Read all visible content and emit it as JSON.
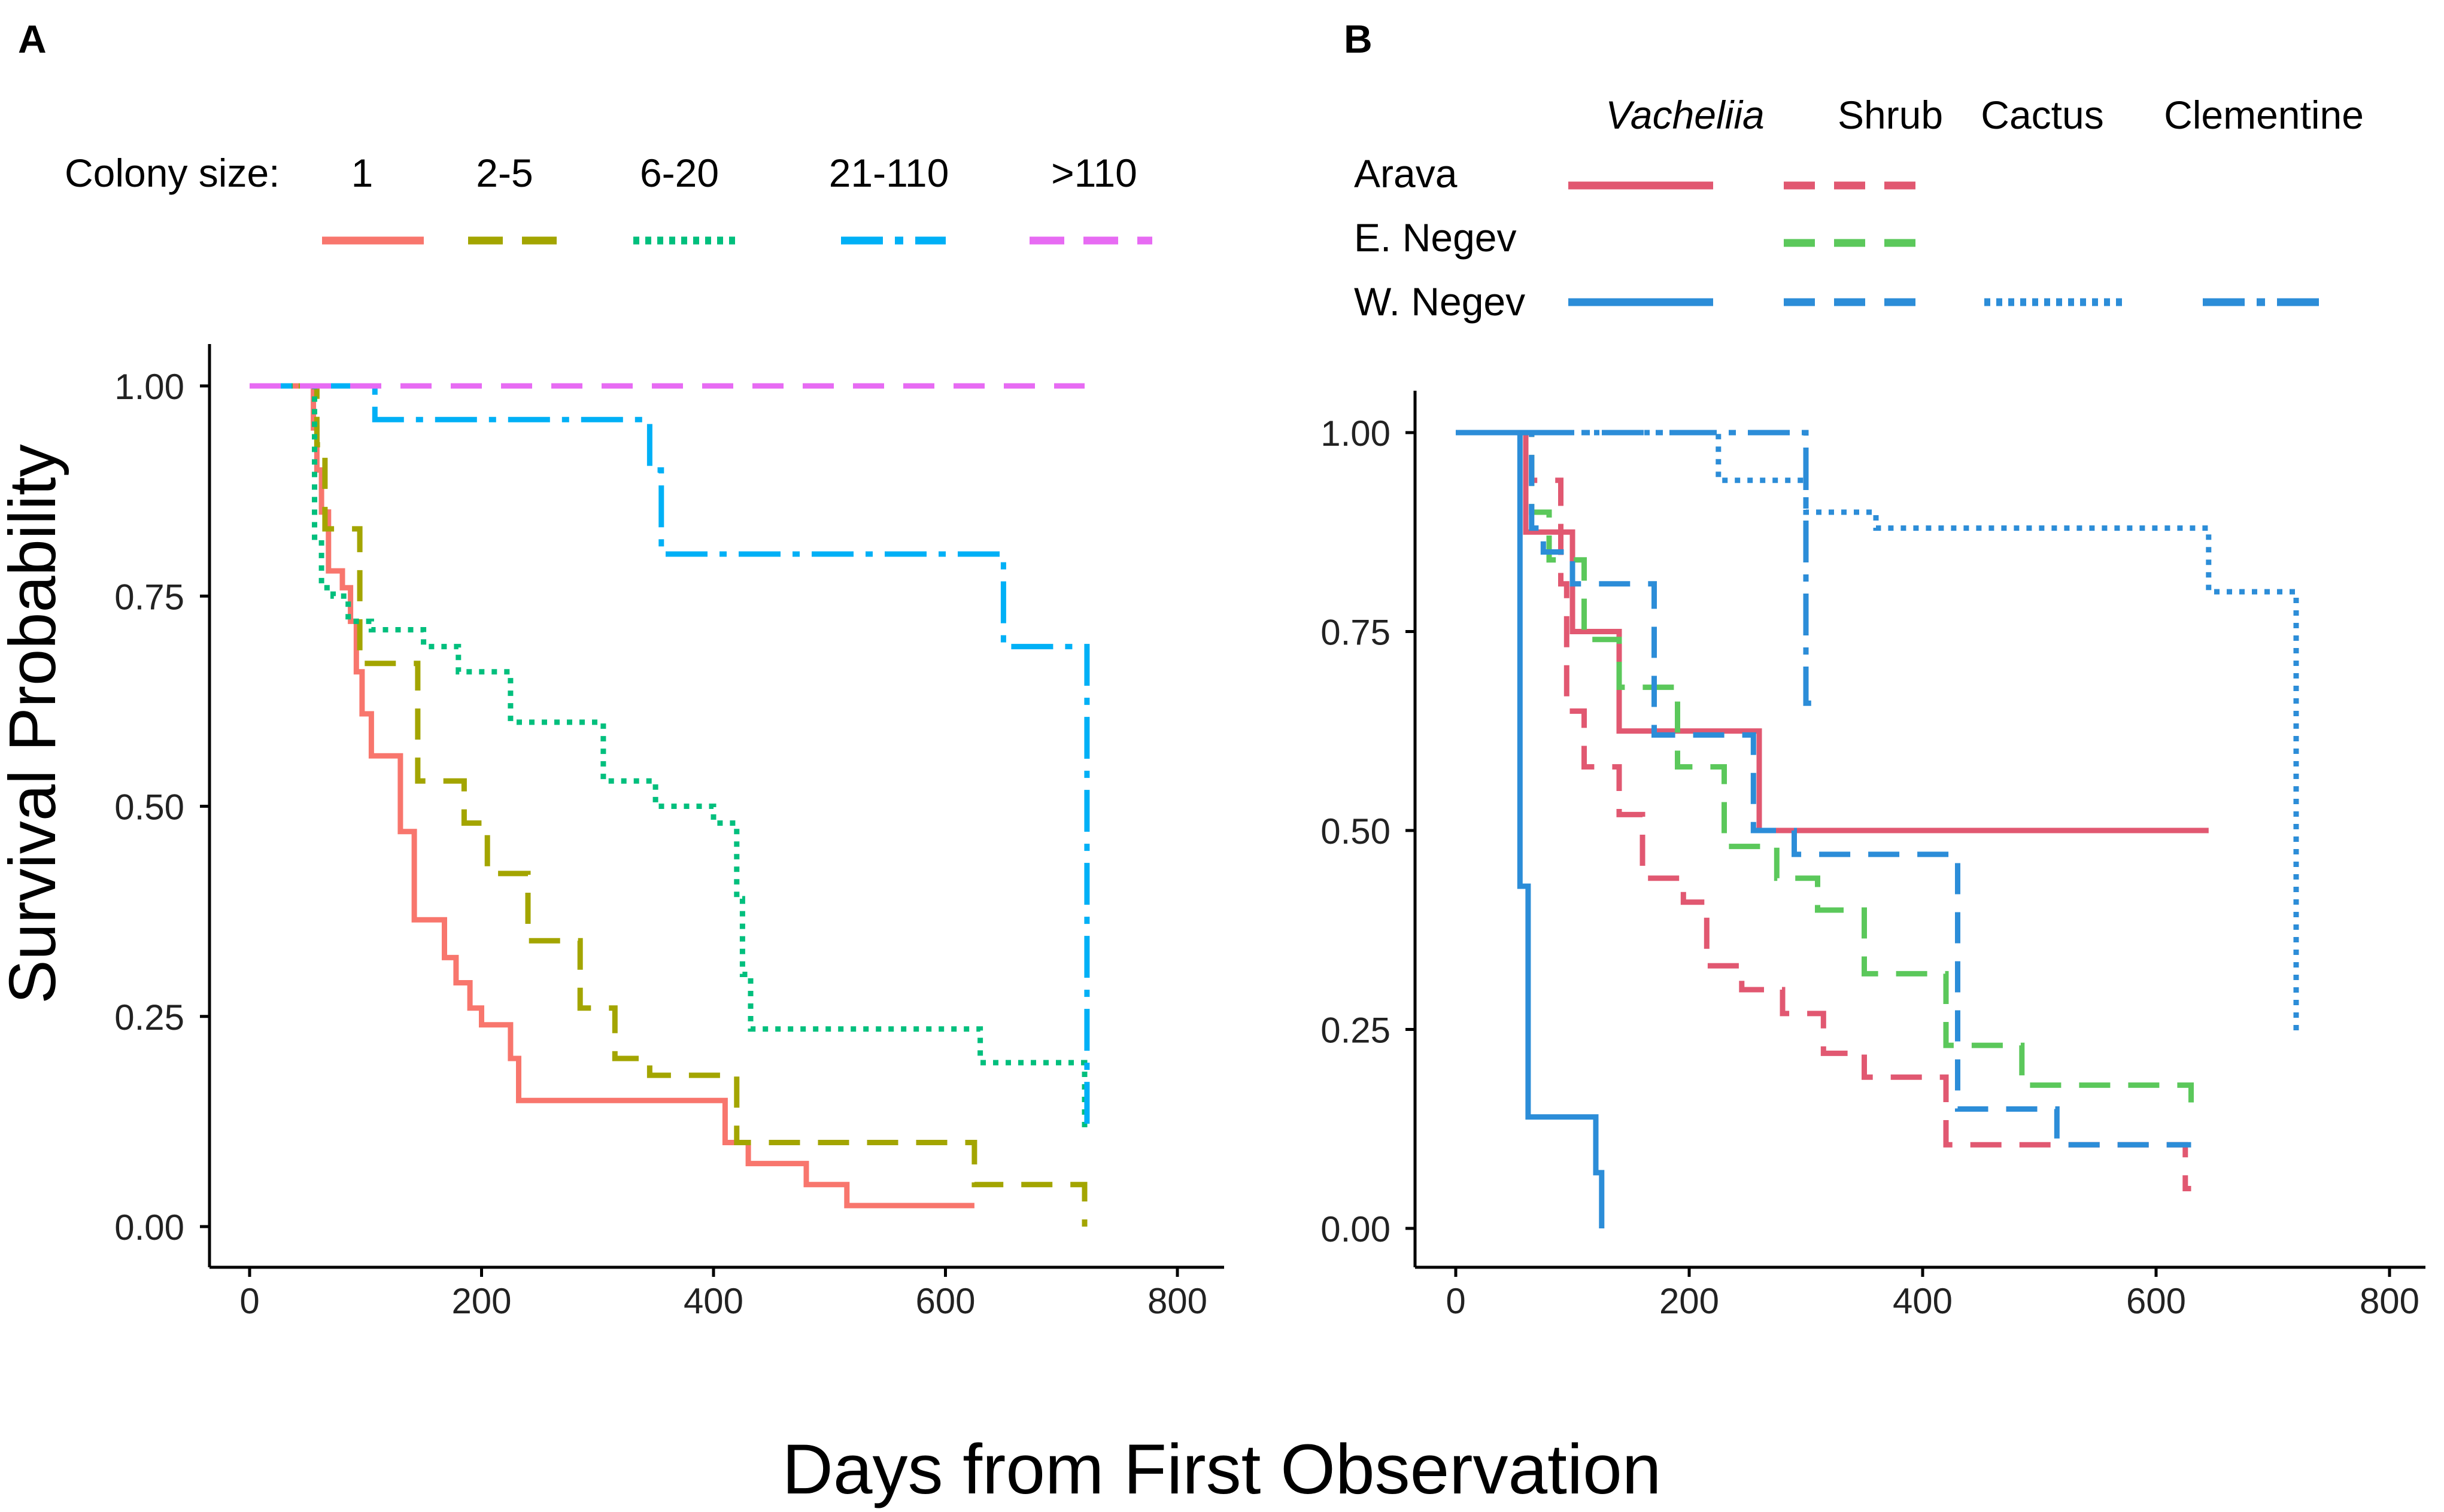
{
  "figure": {
    "panel_a_label": "A",
    "panel_b_label": "B",
    "ylabel": "Survival Probability",
    "xlabel": "Days from First Observation"
  },
  "colors": {
    "c1": "#F8766D",
    "c2": "#A3A500",
    "c3": "#00BF7D",
    "c4": "#00B0F6",
    "c5": "#E76BF3",
    "arava": "#E15871",
    "enegev": "#5BC85B",
    "wnegev": "#2C8DD8"
  },
  "chart_data": [
    {
      "panel": "A",
      "type": "line",
      "subtype": "kaplan-meier-step",
      "xlabel": "Days from First Observation",
      "ylabel": "Survival Probability",
      "xlim": [
        0,
        800
      ],
      "ylim": [
        0,
        1
      ],
      "xticks": [
        "0",
        "200",
        "400",
        "600",
        "800"
      ],
      "yticks": [
        "0.00",
        "0.25",
        "0.50",
        "0.75",
        "1.00"
      ],
      "legend_title": "Colony size:",
      "series": [
        {
          "name": "1",
          "color": "#F8766D",
          "dash": "solid",
          "x": [
            0,
            52,
            55,
            58,
            62,
            68,
            80,
            87,
            92,
            97,
            105,
            118,
            130,
            142,
            168,
            178,
            190,
            200,
            212,
            225,
            232,
            410,
            430,
            480,
            515,
            625
          ],
          "y": [
            1,
            1,
            0.95,
            0.9,
            0.85,
            0.78,
            0.76,
            0.72,
            0.66,
            0.61,
            0.56,
            0.56,
            0.47,
            0.365,
            0.32,
            0.29,
            0.26,
            0.24,
            0.24,
            0.2,
            0.15,
            0.1,
            0.075,
            0.05,
            0.025,
            0.025
          ]
        },
        {
          "name": "2-5",
          "color": "#A3A500",
          "dash": "longdash",
          "x": [
            0,
            52,
            58,
            65,
            80,
            95,
            130,
            145,
            165,
            185,
            205,
            225,
            240,
            260,
            285,
            315,
            345,
            420,
            430,
            625,
            720
          ],
          "y": [
            1,
            1,
            0.93,
            0.83,
            0.83,
            0.67,
            0.67,
            0.53,
            0.53,
            0.48,
            0.42,
            0.42,
            0.34,
            0.34,
            0.26,
            0.2,
            0.18,
            0.1,
            0.1,
            0.05,
            0
          ]
        },
        {
          "name": "6-20",
          "color": "#00BF7D",
          "dash": "dotted",
          "x": [
            0,
            50,
            56,
            62,
            72,
            85,
            105,
            150,
            180,
            225,
            280,
            305,
            350,
            400,
            420,
            425,
            432,
            620,
            630,
            720
          ],
          "y": [
            1,
            1,
            0.82,
            0.76,
            0.75,
            0.72,
            0.71,
            0.69,
            0.66,
            0.6,
            0.6,
            0.53,
            0.5,
            0.48,
            0.39,
            0.3,
            0.235,
            0.235,
            0.195,
            0.11
          ]
        },
        {
          "name": "21-110",
          "color": "#00B0F6",
          "dash": "dotdash",
          "x": [
            0,
            95,
            108,
            300,
            345,
            355,
            640,
            650,
            670,
            718,
            722
          ],
          "y": [
            1,
            1,
            0.96,
            0.96,
            0.9,
            0.8,
            0.8,
            0.69,
            0.69,
            0.69,
            0.11
          ]
        },
        {
          "name": ">110",
          "color": "#E76BF3",
          "dash": "dashed",
          "x": [
            0,
            720
          ],
          "y": [
            1,
            1
          ]
        }
      ]
    },
    {
      "panel": "B",
      "type": "line",
      "subtype": "kaplan-meier-step",
      "xlabel": "Days from First Observation",
      "ylabel": "Survival Probability",
      "xlim": [
        0,
        800
      ],
      "ylim": [
        0,
        1
      ],
      "xticks": [
        "0",
        "200",
        "400",
        "600",
        "800"
      ],
      "yticks": [
        "0.00",
        "0.25",
        "0.50",
        "0.75",
        "1.00"
      ],
      "legend_columns": [
        "Vacheliia",
        "Shrub",
        "Cactus",
        "Clementine"
      ],
      "legend_rows": [
        "Arava",
        "E. Negev",
        "W. Negev"
      ],
      "series": [
        {
          "name": "Arava Vacheliia",
          "color": "#E15871",
          "dash": "solid",
          "x": [
            0,
            55,
            60,
            100,
            140,
            260,
            645
          ],
          "y": [
            1,
            1,
            0.875,
            0.75,
            0.625,
            0.5,
            0.5
          ]
        },
        {
          "name": "Arava Shrub",
          "color": "#E15871",
          "dash": "longdash",
          "x": [
            0,
            55,
            65,
            90,
            95,
            110,
            140,
            160,
            195,
            215,
            245,
            280,
            315,
            350,
            420,
            520,
            625,
            630
          ],
          "y": [
            1,
            1,
            0.94,
            0.81,
            0.65,
            0.58,
            0.52,
            0.44,
            0.41,
            0.33,
            0.3,
            0.27,
            0.22,
            0.19,
            0.105,
            0.105,
            0.05,
            0.05
          ]
        },
        {
          "name": "E. Negev Shrub",
          "color": "#5BC85B",
          "dash": "longdash",
          "x": [
            0,
            55,
            65,
            80,
            110,
            140,
            190,
            225,
            230,
            275,
            310,
            350,
            420,
            440,
            485,
            625,
            630
          ],
          "y": [
            1,
            1,
            0.9,
            0.84,
            0.74,
            0.68,
            0.58,
            0.58,
            0.48,
            0.44,
            0.4,
            0.32,
            0.23,
            0.23,
            0.18,
            0.18,
            0.14
          ]
        },
        {
          "name": "W. Negev Vacheliia",
          "color": "#2C8DD8",
          "dash": "solid",
          "x": [
            0,
            52,
            55,
            62,
            120,
            125
          ],
          "y": [
            1,
            1,
            0.43,
            0.14,
            0.07,
            0
          ]
        },
        {
          "name": "W. Negev Shrub",
          "color": "#2C8DD8",
          "dash": "longdash",
          "x": [
            0,
            55,
            65,
            75,
            100,
            170,
            200,
            255,
            290,
            430,
            515,
            625,
            630
          ],
          "y": [
            1,
            1,
            0.88,
            0.85,
            0.81,
            0.62,
            0.62,
            0.5,
            0.47,
            0.15,
            0.105,
            0.105,
            0.105
          ]
        },
        {
          "name": "W. Negev Cactus",
          "color": "#2C8DD8",
          "dash": "dotted",
          "x": [
            0,
            225,
            300,
            360,
            645,
            720
          ],
          "y": [
            1,
            0.94,
            0.9,
            0.88,
            0.8,
            0.24
          ]
        },
        {
          "name": "W. Negev Clementine",
          "color": "#2C8DD8",
          "dash": "dotdash",
          "x": [
            0,
            300,
            305
          ],
          "y": [
            1,
            0.66,
            0.66
          ]
        }
      ]
    }
  ]
}
